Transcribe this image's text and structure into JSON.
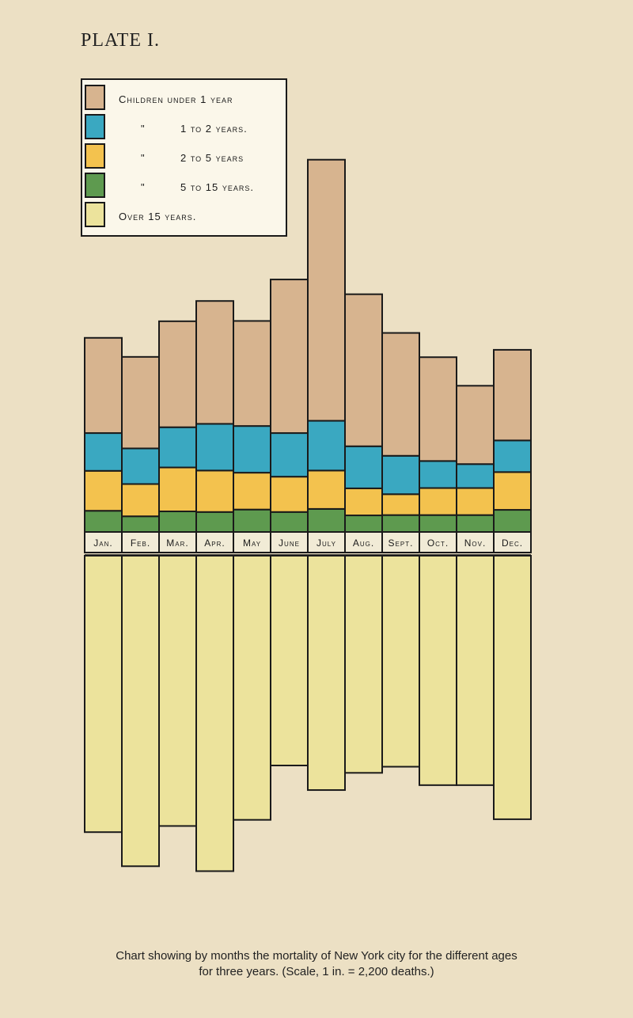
{
  "plate": {
    "title": "PLATE I."
  },
  "caption": {
    "line1": "Chart showing by months the mortality of New York city for the different ages",
    "line2": "for three years.  (Scale, 1 in. = 2,200 deaths.)"
  },
  "legend": [
    {
      "prefix": "Children under 1 year",
      "label": "",
      "color": "#d7b48f"
    },
    {
      "prefix": "\"",
      "label": "1 to 2 years.",
      "color": "#3aa8c1"
    },
    {
      "prefix": "\"",
      "label": "2 to 5 years",
      "color": "#f3c24e"
    },
    {
      "prefix": "\"",
      "label": "5 to 15 years.",
      "color": "#5e9a4f"
    },
    {
      "prefix": "Over 15 years.",
      "label": "",
      "color": "#ece39c"
    }
  ],
  "chart_data": {
    "type": "bar",
    "stacked": true,
    "scale_note": "1 in. = 2,200 deaths",
    "categories": [
      "Jan.",
      "Feb.",
      "Mar.",
      "Apr.",
      "May",
      "June",
      "July",
      "Aug.",
      "Sept.",
      "Oct.",
      "Nov.",
      "Dec."
    ],
    "series": [
      {
        "name": "Children under 1 year",
        "color": "#d7b48f",
        "values": [
          3100,
          2980,
          3450,
          4000,
          3420,
          5000,
          8500,
          4950,
          4000,
          3380,
          2550,
          2950
        ]
      },
      {
        "name": "1 to 2 years",
        "color": "#3aa8c1",
        "values": [
          1230,
          1160,
          1310,
          1520,
          1520,
          1420,
          1620,
          1370,
          1250,
          880,
          780,
          1030
        ]
      },
      {
        "name": "2 to 5 years",
        "color": "#f3c24e",
        "values": [
          1300,
          1050,
          1430,
          1350,
          1200,
          1150,
          1250,
          880,
          680,
          880,
          880,
          1230
        ]
      },
      {
        "name": "5 to 15 years",
        "color": "#5e9a4f",
        "values": [
          690,
          510,
          670,
          650,
          730,
          650,
          750,
          540,
          550,
          550,
          550,
          720
        ]
      },
      {
        "name": "Over 15 years",
        "color": "#ece39c",
        "values": [
          9000,
          10110,
          8800,
          10270,
          8600,
          6830,
          7630,
          7070,
          6870,
          7470,
          7470,
          8580
        ]
      }
    ]
  }
}
